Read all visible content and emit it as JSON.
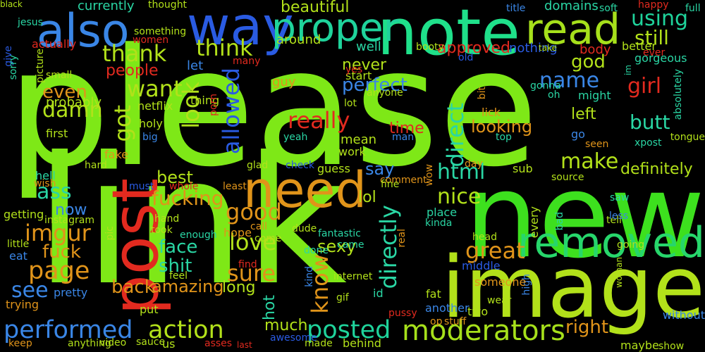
{
  "words": [
    {
      "text": "please",
      "color": "#7ee817"
    },
    {
      "text": "link",
      "color": "#7ee817"
    },
    {
      "text": "new",
      "color": "#3de01e"
    },
    {
      "text": "image",
      "color": "#b2e11a"
    },
    {
      "text": "note",
      "color": "#1fe08a"
    },
    {
      "text": "way",
      "color": "#2a5be2"
    },
    {
      "text": "post",
      "color": "#e22a1f"
    },
    {
      "text": "also",
      "color": "#3a86e6"
    },
    {
      "text": "need",
      "color": "#e0941a"
    },
    {
      "text": "read",
      "color": "#a6e01b"
    },
    {
      "text": "removed",
      "color": "#27d66b"
    },
    {
      "text": "proper",
      "color": "#1fd39b"
    },
    {
      "text": "moderators",
      "color": "#a6e01b"
    },
    {
      "text": "performed",
      "color": "#3a86e6"
    },
    {
      "text": "action",
      "color": "#b2e11a"
    },
    {
      "text": "posted",
      "color": "#1fd39b"
    },
    {
      "text": "page",
      "color": "#e0941a"
    },
    {
      "text": "imgur",
      "color": "#e0941a"
    },
    {
      "text": "good",
      "color": "#e0941a"
    },
    {
      "text": "love",
      "color": "#b2e11a"
    },
    {
      "text": "sure",
      "color": "#e0941a"
    },
    {
      "text": "know",
      "color": "#e0941a"
    },
    {
      "text": "directly",
      "color": "#2ad6a4"
    },
    {
      "text": "direct",
      "color": "#2ad6a4"
    },
    {
      "text": "great",
      "color": "#e0941a"
    },
    {
      "text": "html",
      "color": "#2ad6a4"
    },
    {
      "text": "nice",
      "color": "#b2e11a"
    },
    {
      "text": "make",
      "color": "#b2e11a"
    },
    {
      "text": "using",
      "color": "#1fd39b"
    },
    {
      "text": "still",
      "color": "#b2e11a"
    },
    {
      "text": "thank",
      "color": "#b2e11a"
    },
    {
      "text": "think",
      "color": "#b2e11a"
    },
    {
      "text": "want",
      "color": "#b2e11a"
    },
    {
      "text": "look",
      "color": "#b2e11a"
    },
    {
      "text": "allowed",
      "color": "#2a5be2"
    },
    {
      "text": "name",
      "color": "#3a86e6"
    },
    {
      "text": "girl",
      "color": "#e22a1f"
    },
    {
      "text": "butt",
      "color": "#2ad6a4"
    },
    {
      "text": "really",
      "color": "#e22a1f"
    },
    {
      "text": "got",
      "color": "#b2e11a"
    },
    {
      "text": "fucking",
      "color": "#e0941a"
    },
    {
      "text": "best",
      "color": "#b2e11a"
    },
    {
      "text": "ass",
      "color": "#2ad6a4"
    },
    {
      "text": "see",
      "color": "#3a86e6"
    },
    {
      "text": "fuck",
      "color": "#e0941a"
    },
    {
      "text": "face",
      "color": "#2ad6a4"
    },
    {
      "text": "shit",
      "color": "#2ad6a4"
    },
    {
      "text": "damn",
      "color": "#b2e11a"
    },
    {
      "text": "even",
      "color": "#e0941a"
    },
    {
      "text": "perfect",
      "color": "#3a86e6"
    },
    {
      "text": "looking",
      "color": "#e0941a"
    },
    {
      "text": "god",
      "color": "#b2e11a"
    },
    {
      "text": "say",
      "color": "#3a86e6"
    },
    {
      "text": "lol",
      "color": "#b2e11a"
    },
    {
      "text": "right",
      "color": "#e0941a"
    },
    {
      "text": "back",
      "color": "#e0941a"
    },
    {
      "text": "amazing",
      "color": "#e0941a"
    },
    {
      "text": "sexy",
      "color": "#b2e11a"
    },
    {
      "text": "people",
      "color": "#e22a1f"
    },
    {
      "text": "beautiful",
      "color": "#b2e11a"
    },
    {
      "text": "approved",
      "color": "#e22a1f"
    },
    {
      "text": "never",
      "color": "#b2e11a"
    },
    {
      "text": "time",
      "color": "#e22a1f"
    },
    {
      "text": "definitely",
      "color": "#b2e11a"
    },
    {
      "text": "hot",
      "color": "#2ad6a4"
    },
    {
      "text": "much",
      "color": "#b2e11a"
    },
    {
      "text": "long",
      "color": "#b2e11a"
    },
    {
      "text": "now",
      "color": "#3a86e6"
    },
    {
      "text": "currently",
      "color": "#2ad6a4"
    },
    {
      "text": "thought",
      "color": "#b2e11a"
    },
    {
      "text": "domains",
      "color": "#2ad6a4"
    },
    {
      "text": "title",
      "color": "#3a86e6"
    },
    {
      "text": "soft",
      "color": "#2ad6a4"
    },
    {
      "text": "happy",
      "color": "#e22a1f"
    },
    {
      "text": "full",
      "color": "#2ad6a4"
    },
    {
      "text": "gorgeous",
      "color": "#2ad6a4"
    },
    {
      "text": "absolutely",
      "color": "#2ad6a4"
    },
    {
      "text": "jesus",
      "color": "#2ad6a4"
    },
    {
      "text": "picture",
      "color": "#b2e11a"
    },
    {
      "text": "give",
      "color": "#2a5be2"
    },
    {
      "text": "actually",
      "color": "#e22a1f"
    },
    {
      "text": "something",
      "color": "#b2e11a"
    },
    {
      "text": "women",
      "color": "#e22a1f"
    },
    {
      "text": "around",
      "color": "#b2e11a"
    },
    {
      "text": "well",
      "color": "#2ad6a4"
    },
    {
      "text": "booty",
      "color": "#b2e11a"
    },
    {
      "text": "nothing",
      "color": "#2a5be2"
    },
    {
      "text": "take",
      "color": "#b2e11a"
    },
    {
      "text": "body",
      "color": "#e22a1f"
    },
    {
      "text": "better",
      "color": "#b2e11a"
    },
    {
      "text": "ever",
      "color": "#e22a1f"
    },
    {
      "text": "im",
      "color": "#2ad6a4"
    },
    {
      "text": "old",
      "color": "#2a5be2"
    },
    {
      "text": "start",
      "color": "#b2e11a"
    },
    {
      "text": "yes",
      "color": "#e22a1f"
    },
    {
      "text": "many",
      "color": "#e22a1f"
    },
    {
      "text": "small",
      "color": "#b2e11a"
    },
    {
      "text": "sorry",
      "color": "#2ad6a4"
    },
    {
      "text": "probably",
      "color": "#b2e11a"
    },
    {
      "text": "first",
      "color": "#b2e11a"
    },
    {
      "text": "let",
      "color": "#3a86e6"
    },
    {
      "text": "thing",
      "color": "#b2e11a"
    },
    {
      "text": "guy",
      "color": "#e0941a"
    },
    {
      "text": "anyone",
      "color": "#b2e11a"
    },
    {
      "text": "lot",
      "color": "#b2e11a"
    },
    {
      "text": "porn",
      "color": "#e22a1f"
    },
    {
      "text": "netflix",
      "color": "#b2e11a"
    },
    {
      "text": "holy",
      "color": "#b2e11a"
    },
    {
      "text": "big",
      "color": "#3a86e6"
    },
    {
      "text": "fake",
      "color": "#e0941a"
    },
    {
      "text": "hard",
      "color": "#b2e11a"
    },
    {
      "text": "hell",
      "color": "#2ad6a4"
    },
    {
      "text": "wish",
      "color": "#e0941a"
    },
    {
      "text": "must",
      "color": "#2a5be2"
    },
    {
      "text": "whole",
      "color": "#e22a1f"
    },
    {
      "text": "least",
      "color": "#e0941a"
    },
    {
      "text": "glad",
      "color": "#b2e11a"
    },
    {
      "text": "check",
      "color": "#2a5be2"
    },
    {
      "text": "guess",
      "color": "#b2e11a"
    },
    {
      "text": "work",
      "color": "#b2e11a"
    },
    {
      "text": "mean",
      "color": "#b2e11a"
    },
    {
      "text": "man",
      "color": "#3a86e6"
    },
    {
      "text": "yeah",
      "color": "#2ad6a4"
    },
    {
      "text": "comment",
      "color": "#e0941a"
    },
    {
      "text": "fine",
      "color": "#b2e11a"
    },
    {
      "text": "wow",
      "color": "#e0941a"
    },
    {
      "text": "day",
      "color": "#e0941a"
    },
    {
      "text": "top",
      "color": "#2ad6a4"
    },
    {
      "text": "bit",
      "color": "#e0941a"
    },
    {
      "text": "lick",
      "color": "#e0941a"
    },
    {
      "text": "left",
      "color": "#b2e11a"
    },
    {
      "text": "go",
      "color": "#3a86e6"
    },
    {
      "text": "seen",
      "color": "#e0941a"
    },
    {
      "text": "might",
      "color": "#2ad6a4"
    },
    {
      "text": "oh",
      "color": "#2ad6a4"
    },
    {
      "text": "gonna",
      "color": "#2ad6a4"
    },
    {
      "text": "sub",
      "color": "#b2e11a"
    },
    {
      "text": "source",
      "color": "#b2e11a"
    },
    {
      "text": "xpost",
      "color": "#2ad6a4"
    },
    {
      "text": "tongue",
      "color": "#b2e11a"
    },
    {
      "text": "saw",
      "color": "#2ad6a4"
    },
    {
      "text": "bad",
      "color": "#2ad6a4"
    },
    {
      "text": "tell",
      "color": "#b2e11a"
    },
    {
      "text": "less",
      "color": "#3a86e6"
    },
    {
      "text": "every",
      "color": "#b2e11a"
    },
    {
      "text": "going",
      "color": "#b2e11a"
    },
    {
      "text": "head",
      "color": "#b2e11a"
    },
    {
      "text": "kinda",
      "color": "#2ad6a4"
    },
    {
      "text": "place",
      "color": "#2ad6a4"
    },
    {
      "text": "real",
      "color": "#e0941a"
    },
    {
      "text": "fantastic",
      "color": "#2ad6a4"
    },
    {
      "text": "done",
      "color": "#2ad6a4"
    },
    {
      "text": "came",
      "color": "#2ad6a4"
    },
    {
      "text": "dude",
      "color": "#b2e11a"
    },
    {
      "text": "call",
      "color": "#e0941a"
    },
    {
      "text": "come",
      "color": "#b2e11a"
    },
    {
      "text": "hope",
      "color": "#e0941a"
    },
    {
      "text": "find",
      "color": "#e22a1f"
    },
    {
      "text": "feel",
      "color": "#b2e11a"
    },
    {
      "text": "enough",
      "color": "#2ad6a4"
    },
    {
      "text": "took",
      "color": "#b2e11a"
    },
    {
      "text": "hand",
      "color": "#b2e11a"
    },
    {
      "text": "pic",
      "color": "#b2e11a"
    },
    {
      "text": "instagram",
      "color": "#b2e11a"
    },
    {
      "text": "getting",
      "color": "#b2e11a"
    },
    {
      "text": "little",
      "color": "#b2e11a"
    },
    {
      "text": "eat",
      "color": "#3a86e6"
    },
    {
      "text": "trying",
      "color": "#e0941a"
    },
    {
      "text": "pretty",
      "color": "#3a86e6"
    },
    {
      "text": "put",
      "color": "#b2e11a"
    },
    {
      "text": "kind",
      "color": "#3a86e6"
    },
    {
      "text": "internet",
      "color": "#b2e11a"
    },
    {
      "text": "gif",
      "color": "#b2e11a"
    },
    {
      "text": "id",
      "color": "#2ad6a4"
    },
    {
      "text": "pussy",
      "color": "#e22a1f"
    },
    {
      "text": "op",
      "color": "#e0941a"
    },
    {
      "text": "stuff",
      "color": "#e0941a"
    },
    {
      "text": "another",
      "color": "#3a86e6"
    },
    {
      "text": "two",
      "color": "#b2e11a"
    },
    {
      "text": "fat",
      "color": "#b2e11a"
    },
    {
      "text": "wear",
      "color": "#b2e11a"
    },
    {
      "text": "high",
      "color": "#3a86e6"
    },
    {
      "text": "woman",
      "color": "#b2e11a"
    },
    {
      "text": "without",
      "color": "#3a86e6"
    },
    {
      "text": "maybe",
      "color": "#b2e11a"
    },
    {
      "text": "show",
      "color": "#b2e11a"
    },
    {
      "text": "middle",
      "color": "#2a5be2"
    },
    {
      "text": "someone",
      "color": "#e0941a"
    },
    {
      "text": "keep",
      "color": "#e0941a"
    },
    {
      "text": "anything",
      "color": "#b2e11a"
    },
    {
      "text": "video",
      "color": "#b2e11a"
    },
    {
      "text": "sauce",
      "color": "#b2e11a"
    },
    {
      "text": "us",
      "color": "#b2e11a"
    },
    {
      "text": "asses",
      "color": "#e22a1f"
    },
    {
      "text": "last",
      "color": "#e22a1f"
    },
    {
      "text": "awesome",
      "color": "#2a5be2"
    },
    {
      "text": "made",
      "color": "#b2e11a"
    },
    {
      "text": "behind",
      "color": "#b2e11a"
    },
    {
      "text": "black",
      "color": "#b2e11a"
    }
  ]
}
